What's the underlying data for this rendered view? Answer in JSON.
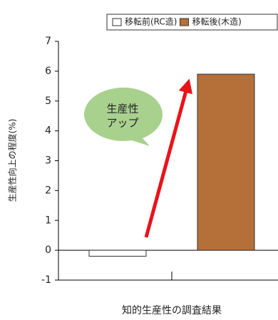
{
  "chart_data": {
    "type": "bar",
    "y_label": "生産性向上の程度(%)",
    "categories": [
      "知的生産性の調査結果"
    ],
    "series": [
      {
        "name": "移転前(RC造)",
        "color": "#ffffff",
        "values": [
          -0.2
        ]
      },
      {
        "name": "移転後(木造)",
        "color": "#b5703a",
        "values": [
          5.9
        ]
      }
    ],
    "ylim": [
      -1,
      7
    ],
    "yticks": [
      -1,
      0,
      1,
      2,
      3,
      4,
      5,
      6,
      7
    ],
    "annotation": [
      "生産性",
      "アップ"
    ],
    "legend": "top-right"
  }
}
